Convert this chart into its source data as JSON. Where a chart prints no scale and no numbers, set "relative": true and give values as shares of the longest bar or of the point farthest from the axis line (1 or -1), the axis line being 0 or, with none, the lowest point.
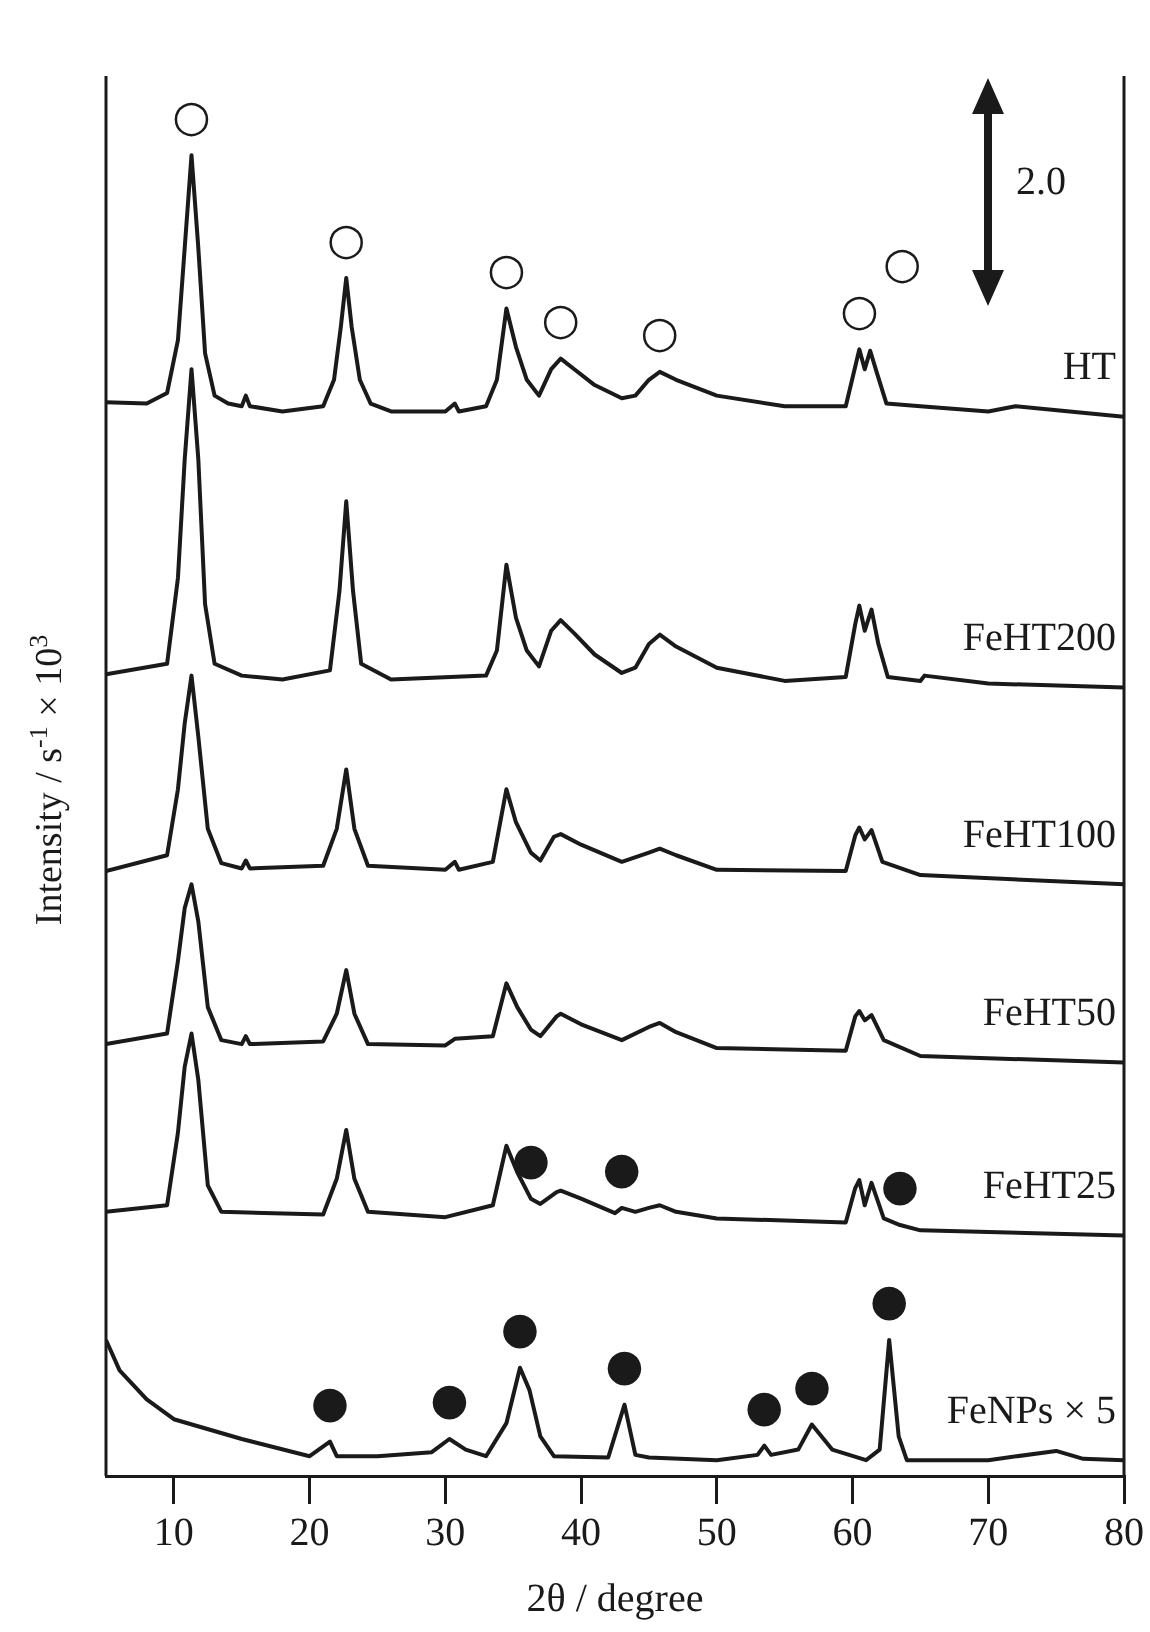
{
  "chart_data": {
    "type": "line",
    "xlabel": "2θ / degree",
    "ylabel": "Intensity / s$^{-1}$ × 10$^{3}$",
    "relative": true,
    "xlim": [
      5,
      80
    ],
    "xticks": [
      10,
      20,
      30,
      40,
      50,
      60,
      70,
      80
    ],
    "grid": false,
    "legend": false,
    "marker": "none",
    "line_style": "solid",
    "series": [
      {
        "name": "HT",
        "color": "#1a1a1a",
        "x": [
          5,
          8,
          9.5,
          10.3,
          10.8,
          11.3,
          11.8,
          12.3,
          13,
          14,
          15,
          15.3,
          15.6,
          18,
          21,
          21.8,
          22.3,
          22.7,
          23.1,
          23.7,
          24.5,
          26,
          30,
          30.7,
          31,
          33,
          33.8,
          34.5,
          35.2,
          36,
          36.9,
          37.8,
          38.5,
          39.5,
          41,
          43,
          44,
          45,
          45.8,
          47,
          50,
          55,
          59.5,
          60.2,
          60.5,
          60.9,
          61.3,
          61.8,
          62.5,
          65,
          70,
          72,
          76,
          80
        ],
        "values": [
          0.813,
          0.812,
          0.82,
          0.86,
          0.93,
          1,
          0.93,
          0.85,
          0.818,
          0.812,
          0.81,
          0.818,
          0.81,
          0.806,
          0.81,
          0.83,
          0.87,
          0.907,
          0.87,
          0.83,
          0.812,
          0.806,
          0.806,
          0.812,
          0.806,
          0.81,
          0.83,
          0.884,
          0.855,
          0.83,
          0.818,
          0.838,
          0.846,
          0.838,
          0.826,
          0.816,
          0.818,
          0.83,
          0.836,
          0.83,
          0.818,
          0.81,
          0.81,
          0.84,
          0.853,
          0.838,
          0.852,
          0.835,
          0.812,
          0.81,
          0.806,
          0.81,
          0.806,
          0.802
        ]
      },
      {
        "name": "FeHT200",
        "color": "#1a1a1a",
        "x": [
          5,
          9.5,
          10.3,
          10.8,
          11.3,
          11.8,
          12.3,
          13,
          15,
          18,
          21.5,
          22.2,
          22.7,
          23.2,
          23.8,
          26,
          33,
          33.8,
          34.5,
          35.2,
          36,
          36.9,
          37.8,
          38.5,
          39.5,
          41,
          43,
          44,
          45,
          45.8,
          47,
          50,
          55,
          59.5,
          60.2,
          60.5,
          60.9,
          61.4,
          61.9,
          62.6,
          65,
          65.3,
          70,
          80
        ],
        "values": [
          0.607,
          0.615,
          0.68,
          0.77,
          0.838,
          0.77,
          0.66,
          0.615,
          0.606,
          0.603,
          0.61,
          0.67,
          0.738,
          0.67,
          0.615,
          0.603,
          0.606,
          0.625,
          0.69,
          0.65,
          0.625,
          0.613,
          0.64,
          0.648,
          0.638,
          0.622,
          0.608,
          0.612,
          0.63,
          0.637,
          0.628,
          0.612,
          0.602,
          0.605,
          0.645,
          0.659,
          0.64,
          0.656,
          0.63,
          0.605,
          0.602,
          0.606,
          0.6,
          0.597
        ]
      },
      {
        "name": "FeHT100",
        "color": "#1a1a1a",
        "x": [
          5,
          9.5,
          10.3,
          10.8,
          11.3,
          11.8,
          12.5,
          13.5,
          15,
          15.3,
          15.6,
          21,
          22,
          22.7,
          23.3,
          24.3,
          30,
          30.7,
          31,
          33.5,
          34.5,
          35.2,
          36.3,
          37,
          38,
          38.5,
          40,
          43,
          45,
          45.8,
          47,
          50,
          59.5,
          60.2,
          60.5,
          60.9,
          61.4,
          62.2,
          65,
          80
        ],
        "values": [
          0.458,
          0.47,
          0.52,
          0.57,
          0.606,
          0.56,
          0.49,
          0.464,
          0.46,
          0.466,
          0.46,
          0.462,
          0.49,
          0.535,
          0.49,
          0.462,
          0.459,
          0.465,
          0.459,
          0.465,
          0.52,
          0.495,
          0.472,
          0.466,
          0.484,
          0.486,
          0.478,
          0.465,
          0.472,
          0.475,
          0.47,
          0.459,
          0.458,
          0.485,
          0.491,
          0.482,
          0.489,
          0.465,
          0.455,
          0.448
        ]
      },
      {
        "name": "FeHT50",
        "color": "#1a1a1a",
        "x": [
          5,
          9.5,
          10.3,
          10.8,
          11.3,
          11.8,
          12.5,
          13.5,
          15,
          15.3,
          15.6,
          21,
          22,
          22.7,
          23.3,
          24.3,
          30,
          30.7,
          33.5,
          34.5,
          35.3,
          36.3,
          37,
          38.2,
          38.5,
          40,
          43,
          45,
          45.8,
          47,
          50,
          59.5,
          60.2,
          60.5,
          60.9,
          61.4,
          62.3,
          65,
          80
        ],
        "values": [
          0.327,
          0.335,
          0.39,
          0.43,
          0.448,
          0.42,
          0.355,
          0.33,
          0.327,
          0.333,
          0.327,
          0.329,
          0.35,
          0.383,
          0.35,
          0.327,
          0.326,
          0.331,
          0.333,
          0.373,
          0.355,
          0.338,
          0.333,
          0.348,
          0.35,
          0.342,
          0.33,
          0.34,
          0.343,
          0.336,
          0.324,
          0.322,
          0.348,
          0.352,
          0.345,
          0.349,
          0.33,
          0.318,
          0.313
        ]
      },
      {
        "name": "FeHT25",
        "color": "#1a1a1a",
        "x": [
          5,
          9.5,
          10.3,
          10.8,
          11.3,
          11.8,
          12.5,
          13.5,
          21,
          22,
          22.7,
          23.3,
          24.3,
          30,
          33.5,
          34.5,
          35.3,
          36.3,
          37,
          38.2,
          38.5,
          40,
          42.5,
          43,
          44,
          45,
          45.8,
          47,
          50,
          59.5,
          60.2,
          60.5,
          60.9,
          61.4,
          62.3,
          63.5,
          65,
          80
        ],
        "values": [
          0.2,
          0.205,
          0.26,
          0.31,
          0.335,
          0.3,
          0.22,
          0.2,
          0.198,
          0.225,
          0.262,
          0.225,
          0.2,
          0.196,
          0.205,
          0.25,
          0.23,
          0.21,
          0.206,
          0.215,
          0.216,
          0.21,
          0.199,
          0.203,
          0.2,
          0.203,
          0.205,
          0.2,
          0.195,
          0.192,
          0.218,
          0.224,
          0.205,
          0.222,
          0.195,
          0.19,
          0.186,
          0.182
        ]
      },
      {
        "name": "FeNPs × 5",
        "color": "#1a1a1a",
        "x": [
          5,
          6,
          8,
          10,
          15,
          20,
          21.5,
          22,
          25,
          29,
          30.3,
          31.5,
          33,
          34.5,
          35.5,
          36.2,
          37,
          38,
          42,
          43.2,
          44,
          45,
          50,
          53,
          53.5,
          54,
          56,
          57,
          58.5,
          61,
          62,
          62.7,
          63.4,
          64,
          70,
          75,
          77,
          80
        ],
        "values": [
          0.103,
          0.08,
          0.058,
          0.043,
          0.028,
          0.015,
          0.026,
          0.015,
          0.015,
          0.018,
          0.028,
          0.02,
          0.015,
          0.04,
          0.082,
          0.065,
          0.03,
          0.015,
          0.014,
          0.054,
          0.016,
          0.014,
          0.012,
          0.016,
          0.023,
          0.016,
          0.02,
          0.039,
          0.02,
          0.012,
          0.02,
          0.103,
          0.03,
          0.012,
          0.012,
          0.019,
          0.013,
          0.012
        ]
      }
    ],
    "annotations": [
      "2.0",
      {
        "text": "○",
        "x": 11.3,
        "y": 1
      },
      {
        "text": "○",
        "x": 22.7,
        "y": 0.907
      },
      {
        "text": "○",
        "x": 34.5,
        "y": 0.884
      },
      {
        "text": "○",
        "x": 38.5,
        "y": 0.846
      },
      {
        "text": "○",
        "x": 45.8,
        "y": 0.836
      },
      {
        "text": "○",
        "x": 60.5,
        "y": 0.853
      },
      {
        "text": "○",
        "x": 61.3,
        "y": 0.852
      },
      {
        "text": "●",
        "x": 36.3,
        "y": 0.21
      },
      {
        "text": "●",
        "x": 43,
        "y": 0.203
      },
      {
        "text": "●",
        "x": 63.5,
        "y": 0.19
      },
      {
        "text": "●",
        "x": 21.5,
        "y": 0.026
      },
      {
        "text": "●",
        "x": 30.3,
        "y": 0.028
      },
      {
        "text": "●",
        "x": 35.5,
        "y": 0.082
      },
      {
        "text": "●",
        "x": 43.2,
        "y": 0.054
      },
      {
        "text": "●",
        "x": 53.5,
        "y": 0.023
      },
      {
        "text": "●",
        "x": 57,
        "y": 0.039
      },
      {
        "text": "●",
        "x": 62.7,
        "y": 0.103
      }
    ]
  }
}
